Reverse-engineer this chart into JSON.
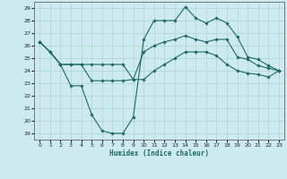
{
  "xlabel": "Humidex (Indice chaleur)",
  "background_color": "#cdeaf0",
  "grid_color": "#aad5cc",
  "line_color": "#1e6b5e",
  "xlim": [
    -0.5,
    23.5
  ],
  "ylim": [
    18.5,
    29.5
  ],
  "yticks": [
    19,
    20,
    21,
    22,
    23,
    24,
    25,
    26,
    27,
    28,
    29
  ],
  "xticks": [
    0,
    1,
    2,
    3,
    4,
    5,
    6,
    7,
    8,
    9,
    10,
    11,
    12,
    13,
    14,
    15,
    16,
    17,
    18,
    19,
    20,
    21,
    22,
    23
  ],
  "line1_x": [
    0,
    1,
    2,
    3,
    4,
    5,
    6,
    7,
    8,
    9,
    10,
    11,
    12,
    13,
    14,
    15,
    16,
    17,
    18,
    19,
    20,
    21,
    22,
    23
  ],
  "line1_y": [
    26.3,
    25.5,
    24.5,
    24.5,
    24.5,
    24.5,
    24.5,
    24.5,
    24.5,
    23.3,
    25.5,
    26.0,
    26.3,
    26.5,
    26.8,
    26.5,
    26.3,
    26.5,
    26.5,
    25.1,
    24.9,
    24.4,
    24.2,
    24.0
  ],
  "line2_x": [
    0,
    1,
    2,
    3,
    4,
    5,
    6,
    7,
    8,
    9,
    10,
    11,
    12,
    13,
    14,
    15,
    16,
    17,
    18,
    19,
    20,
    21,
    22,
    23
  ],
  "line2_y": [
    26.3,
    25.5,
    24.5,
    22.8,
    22.8,
    20.5,
    19.2,
    19.0,
    19.0,
    20.3,
    26.5,
    28.0,
    28.0,
    28.0,
    29.1,
    28.2,
    27.8,
    28.2,
    27.8,
    26.7,
    25.1,
    24.9,
    24.4,
    24.0
  ],
  "line3_x": [
    0,
    1,
    2,
    3,
    4,
    5,
    6,
    7,
    8,
    9,
    10,
    11,
    12,
    13,
    14,
    15,
    16,
    17,
    18,
    19,
    20,
    21,
    22,
    23
  ],
  "line3_y": [
    26.3,
    25.5,
    24.5,
    24.5,
    24.5,
    23.2,
    23.2,
    23.2,
    23.2,
    23.3,
    23.3,
    24.0,
    24.5,
    25.0,
    25.5,
    25.5,
    25.5,
    25.2,
    24.5,
    24.0,
    23.8,
    23.7,
    23.5,
    24.0
  ]
}
